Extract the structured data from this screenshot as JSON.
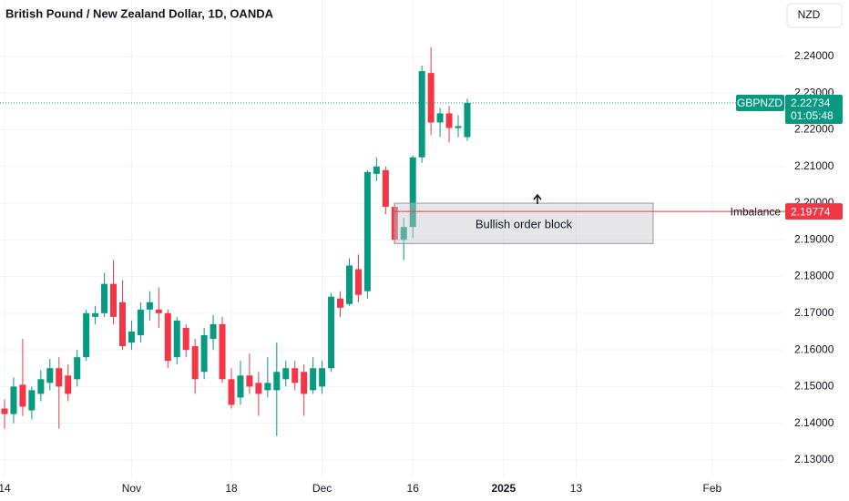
{
  "chart_data": {
    "type": "candlestick",
    "title": "British Pound / New Zealand Dollar, 1D, OANDA",
    "currency": "NZD",
    "categories": [
      "14",
      null,
      null,
      null,
      null,
      null,
      null,
      null,
      null,
      null,
      null,
      null,
      null,
      null,
      "Nov",
      null,
      null,
      null,
      null,
      null,
      null,
      null,
      null,
      null,
      null,
      "18",
      null,
      null,
      null,
      null,
      null,
      null,
      null,
      null,
      null,
      "Dec",
      null,
      null,
      null,
      null,
      null,
      null,
      null,
      null,
      null,
      "16",
      null,
      null,
      null,
      null,
      null,
      null,
      null,
      null,
      null,
      "2025",
      null,
      null,
      null,
      null,
      null,
      null,
      null,
      "13",
      null,
      null,
      null,
      null,
      null,
      null,
      null,
      null,
      null,
      null,
      null,
      null,
      null,
      null,
      "Feb",
      null,
      null,
      null,
      null,
      null,
      null,
      null,
      null
    ],
    "open": [
      2.144,
      2.1425,
      2.1505,
      2.1435,
      2.148,
      2.151,
      2.155,
      2.153,
      2.152,
      2.158,
      2.169,
      2.17,
      2.178,
      2.173,
      2.162,
      2.164,
      2.171,
      2.171,
      2.17,
      2.158,
      2.166,
      2.161,
      2.154,
      2.163,
      2.167,
      2.152,
      2.147,
      2.153,
      2.151,
      2.149,
      2.149,
      2.152,
      2.155,
      2.154,
      2.149,
      2.15,
      2.155,
      2.174,
      2.1725,
      2.182,
      2.176,
      2.208,
      2.209,
      2.199,
      2.19,
      2.1935,
      2.2125,
      2.2355,
      2.222,
      2.2245,
      2.2205,
      2.218,
      null,
      null,
      null,
      null,
      null,
      null,
      null,
      null,
      null,
      null,
      null,
      null,
      null,
      null,
      null,
      null,
      null,
      null,
      null,
      null,
      null,
      null,
      null,
      null,
      null,
      null,
      null,
      null,
      null,
      null,
      null,
      null,
      null,
      null,
      null
    ],
    "high": [
      2.1465,
      2.1525,
      2.163,
      2.15,
      2.1545,
      2.1575,
      2.158,
      2.156,
      2.16,
      2.171,
      2.172,
      2.181,
      2.1845,
      2.179,
      2.168,
      2.173,
      2.176,
      2.177,
      2.171,
      2.169,
      2.167,
      2.163,
      2.166,
      2.1695,
      2.169,
      2.155,
      2.157,
      2.159,
      2.154,
      2.158,
      2.162,
      2.157,
      2.157,
      2.156,
      2.158,
      2.157,
      2.1755,
      2.176,
      2.185,
      2.186,
      2.209,
      2.2125,
      2.21,
      2.2,
      2.196,
      2.213,
      2.2375,
      2.2425,
      2.226,
      2.2265,
      2.224,
      2.2285,
      null,
      null,
      null,
      null,
      null,
      null,
      null,
      null,
      null,
      null,
      null,
      null,
      null,
      null,
      null,
      null,
      null,
      null,
      null,
      null,
      null,
      null,
      null,
      null,
      null,
      null,
      null,
      null,
      null,
      null,
      null,
      null,
      null,
      null,
      null
    ],
    "low": [
      2.1385,
      2.14,
      2.142,
      2.141,
      2.146,
      2.149,
      2.1385,
      2.146,
      2.15,
      2.157,
      2.167,
      2.169,
      2.167,
      2.16,
      2.16,
      2.162,
      2.168,
      2.166,
      2.155,
      2.156,
      2.158,
      2.148,
      2.152,
      2.16,
      2.151,
      2.144,
      2.145,
      2.148,
      2.142,
      2.147,
      2.1365,
      2.15,
      2.149,
      2.142,
      2.148,
      2.148,
      2.154,
      2.169,
      2.172,
      2.173,
      2.174,
      2.206,
      2.197,
      2.189,
      2.1845,
      2.1905,
      2.211,
      2.2185,
      2.218,
      2.2165,
      2.218,
      2.217,
      null,
      null,
      null,
      null,
      null,
      null,
      null,
      null,
      null,
      null,
      null,
      null,
      null,
      null,
      null,
      null,
      null,
      null,
      null,
      null,
      null,
      null,
      null,
      null,
      null,
      null,
      null,
      null,
      null,
      null,
      null,
      null,
      null,
      null,
      null
    ],
    "close": [
      2.1425,
      2.15,
      2.1445,
      2.149,
      2.152,
      2.155,
      2.15,
      2.148,
      2.158,
      2.17,
      2.17,
      2.178,
      2.169,
      2.161,
      2.165,
      2.171,
      2.173,
      2.17,
      2.157,
      2.168,
      2.16,
      2.152,
      2.164,
      2.167,
      2.152,
      2.145,
      2.153,
      2.15,
      2.148,
      2.151,
      2.154,
      2.155,
      2.151,
      2.148,
      2.155,
      2.155,
      2.1745,
      2.1715,
      2.183,
      2.175,
      2.2085,
      2.21,
      2.199,
      2.19,
      2.1935,
      2.2125,
      2.236,
      2.222,
      2.2245,
      2.2205,
      2.221,
      2.22734,
      null,
      null,
      null,
      null,
      null,
      null,
      null,
      null,
      null,
      null,
      null,
      null,
      null,
      null,
      null,
      null,
      null,
      null,
      null,
      null,
      null,
      null,
      null,
      null,
      null,
      null,
      null,
      null,
      null,
      null,
      null,
      null,
      null,
      null,
      null
    ],
    "up_color": "#089981",
    "down_color": "#f23645",
    "ylim": [
      2.125,
      2.2554
    ],
    "yticks": [
      {
        "value": 2.13,
        "label": "2.13000"
      },
      {
        "value": 2.14,
        "label": "2.14000"
      },
      {
        "value": 2.15,
        "label": "2.15000"
      },
      {
        "value": 2.16,
        "label": "2.16000"
      },
      {
        "value": 2.17,
        "label": "2.17000"
      },
      {
        "value": 2.18,
        "label": "2.18000"
      },
      {
        "value": 2.19,
        "label": "2.19000"
      },
      {
        "value": 2.2,
        "label": "2.20000"
      },
      {
        "value": 2.21,
        "label": "2.21000"
      },
      {
        "value": 2.22,
        "label": "2.22000"
      },
      {
        "value": 2.23,
        "label": "2.23000"
      },
      {
        "value": 2.24,
        "label": "2.24000"
      }
    ],
    "grid": true,
    "current_price": {
      "symbol": "GBPNZD",
      "value": 2.22734,
      "countdown": "01:05:48",
      "color": "#089981"
    },
    "imbalance": {
      "label": "Imbalance",
      "value": 2.19774,
      "color": "#f23645"
    },
    "order_block": {
      "label": "Bullish order block",
      "range": [
        2.189,
        2.2
      ]
    }
  }
}
